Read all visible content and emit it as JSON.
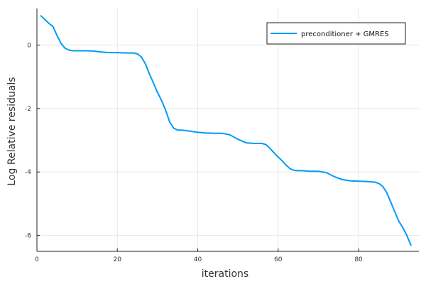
{
  "chart_data": {
    "type": "line",
    "title": "",
    "xlabel": "iterations",
    "ylabel": "Log Relative residuals",
    "xlim": [
      0,
      95
    ],
    "ylim": [
      -6.5,
      1.15
    ],
    "x_ticks": [
      0,
      20,
      40,
      60,
      80
    ],
    "y_ticks": [
      0,
      -2,
      -4,
      -6
    ],
    "grid": true,
    "legend_position": "top-right",
    "colors": {
      "series": "#009AFA",
      "grid": "#E6E6E6",
      "axis": "#222222"
    },
    "series": [
      {
        "name": "preconditioner + GMRES",
        "x": [
          1,
          2,
          3,
          4,
          5,
          6,
          7,
          8,
          9,
          10,
          12,
          14,
          16,
          18,
          20,
          22,
          24,
          25,
          26,
          27,
          28,
          29,
          30,
          31,
          32,
          33,
          34,
          35,
          36,
          38,
          40,
          42,
          44,
          46,
          48,
          50,
          52,
          54,
          56,
          57,
          58,
          59,
          60,
          61,
          62,
          63,
          64,
          65,
          66,
          68,
          70,
          72,
          74,
          76,
          78,
          80,
          82,
          84,
          85,
          86,
          87,
          88,
          89,
          90,
          91,
          92,
          93
        ],
        "y": [
          0.92,
          0.8,
          0.68,
          0.58,
          0.3,
          0.05,
          -0.1,
          -0.16,
          -0.18,
          -0.18,
          -0.18,
          -0.19,
          -0.22,
          -0.24,
          -0.24,
          -0.25,
          -0.25,
          -0.28,
          -0.38,
          -0.6,
          -0.92,
          -1.2,
          -1.5,
          -1.75,
          -2.05,
          -2.42,
          -2.62,
          -2.68,
          -2.68,
          -2.71,
          -2.75,
          -2.77,
          -2.78,
          -2.78,
          -2.83,
          -2.97,
          -3.08,
          -3.1,
          -3.1,
          -3.14,
          -3.26,
          -3.4,
          -3.53,
          -3.65,
          -3.79,
          -3.9,
          -3.95,
          -3.96,
          -3.96,
          -3.98,
          -3.98,
          -4.02,
          -4.15,
          -4.24,
          -4.28,
          -4.29,
          -4.3,
          -4.32,
          -4.36,
          -4.45,
          -4.65,
          -4.95,
          -5.25,
          -5.55,
          -5.75,
          -6.0,
          -6.3
        ]
      }
    ]
  }
}
